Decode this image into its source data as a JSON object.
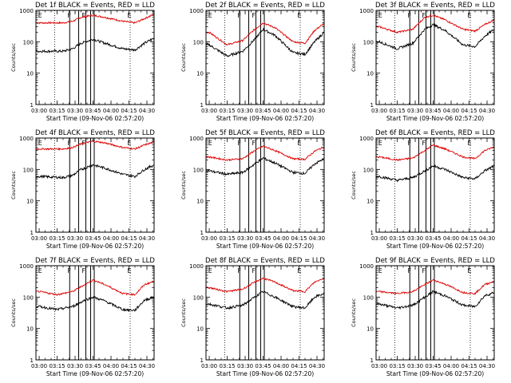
{
  "panels": [
    {
      "title": "Det 1f BLACK = Events, RED = LLD",
      "date_label": "Start Time (09-Nov-06 02:57:20)",
      "letters": [
        "E",
        "F",
        "F",
        "E"
      ]
    },
    {
      "title": "Det 2f BLACK = Events, RED = LLD",
      "date_label": "Start Time (09-Nov-06 02:57:20)",
      "letters": [
        "E",
        "F",
        "F",
        "E"
      ]
    },
    {
      "title": "Det 3f BLACK = Events, RED = LLD",
      "date_label": "Start Time (09-Nov-06 02:57:20)",
      "letters": [
        "E",
        "F",
        "F",
        "E"
      ]
    },
    {
      "title": "Det 4f BLACK = Events, RED = LLD",
      "date_label": "Start Time (09-Nov-06 02:57:20)",
      "letters": [
        "E",
        "F",
        "F",
        "E"
      ]
    },
    {
      "title": "Det 5f BLACK = Events, RED = LLD",
      "date_label": "Start Time (09-Nov-06 02:57:20)",
      "letters": [
        "E",
        "F",
        "F",
        "E"
      ]
    },
    {
      "title": "Det 6f BLACK = Events, RED = LLD",
      "date_label": "Start Time (09-Nov-06 02:57:20)",
      "letters": [
        "E",
        "F",
        "F",
        "E"
      ]
    },
    {
      "title": "Det 7f BLACK = Events, RED = LLD",
      "date_label": "Start Time (09-Nov-06 02:57:20)",
      "letters": [
        "E",
        "F",
        "F",
        "E"
      ]
    },
    {
      "title": "Det 8f BLACK = Events, RED = LLD",
      "date_label": "Start Time (09-Nov-06 02:57:20)",
      "letters": [
        "E",
        "F",
        "F",
        "E"
      ]
    },
    {
      "title": "Det 9f BLACK = Events, RED = LLD",
      "date_label": "Start Time (09-Nov-06 02:57:20)",
      "letters": [
        "E",
        "F",
        "F",
        "E"
      ]
    }
  ],
  "chart_data": {
    "type": "line",
    "scale_y": "log",
    "ylabel": "Counts/sec",
    "y_tick_labels": [
      "1",
      "10",
      "100",
      "1000"
    ],
    "ylim": [
      1,
      1000
    ],
    "x_tick_labels": [
      "03:00",
      "03:15",
      "03:30",
      "03:45",
      "04:00",
      "04:15",
      "04:30"
    ],
    "x_ticks_minutes_after_0300": [
      0,
      15,
      30,
      45,
      60,
      75,
      90
    ],
    "xlim_minutes_after_0300": [
      -2.7,
      96
    ],
    "colors": {
      "events": "#000000",
      "lld": "#dd0000",
      "axis": "#000000"
    },
    "dotted_markers_minutes_after_0300": [
      13,
      76
    ],
    "vertical_markers_minutes_after_0300": [
      25.5,
      33,
      39,
      43,
      46
    ],
    "series_names": [
      "Events",
      "LLD"
    ],
    "panels": [
      {
        "detector": "1f",
        "x_minutes": [
          0,
          20,
          28,
          35,
          45,
          55,
          70,
          80,
          88,
          96
        ],
        "events": [
          50,
          50,
          60,
          90,
          120,
          90,
          60,
          55,
          90,
          130
        ],
        "lld": [
          400,
          400,
          450,
          600,
          700,
          600,
          450,
          400,
          550,
          750
        ]
      },
      {
        "detector": "2f",
        "x_minutes": [
          0,
          15,
          28,
          38,
          45,
          55,
          70,
          80,
          88,
          96
        ],
        "events": [
          80,
          35,
          50,
          120,
          250,
          160,
          45,
          40,
          100,
          200
        ],
        "lld": [
          200,
          80,
          110,
          250,
          400,
          280,
          100,
          90,
          230,
          380
        ]
      },
      {
        "detector": "3f",
        "x_minutes": [
          0,
          15,
          28,
          38,
          45,
          55,
          70,
          80,
          88,
          96
        ],
        "events": [
          100,
          60,
          90,
          250,
          350,
          230,
          80,
          70,
          150,
          250
        ],
        "lld": [
          300,
          200,
          250,
          600,
          700,
          500,
          250,
          220,
          350,
          500
        ]
      },
      {
        "detector": "4f",
        "x_minutes": [
          0,
          20,
          28,
          35,
          45,
          55,
          70,
          80,
          88,
          96
        ],
        "events": [
          60,
          55,
          65,
          100,
          140,
          110,
          70,
          60,
          100,
          140
        ],
        "lld": [
          450,
          450,
          500,
          650,
          800,
          700,
          500,
          450,
          600,
          750
        ]
      },
      {
        "detector": "5f",
        "x_minutes": [
          0,
          15,
          28,
          38,
          45,
          55,
          70,
          80,
          88,
          96
        ],
        "events": [
          90,
          70,
          80,
          150,
          230,
          160,
          80,
          75,
          150,
          220
        ],
        "lld": [
          250,
          200,
          220,
          400,
          550,
          400,
          220,
          210,
          380,
          520
        ]
      },
      {
        "detector": "6f",
        "x_minutes": [
          0,
          15,
          28,
          38,
          45,
          55,
          70,
          80,
          88,
          96
        ],
        "events": [
          60,
          45,
          55,
          90,
          130,
          100,
          55,
          50,
          90,
          130
        ],
        "lld": [
          250,
          200,
          230,
          400,
          600,
          450,
          250,
          220,
          400,
          520
        ]
      },
      {
        "detector": "7f",
        "x_minutes": [
          0,
          15,
          28,
          38,
          45,
          55,
          70,
          80,
          88,
          96
        ],
        "events": [
          50,
          40,
          50,
          80,
          100,
          75,
          40,
          38,
          80,
          100
        ],
        "lld": [
          150,
          120,
          150,
          250,
          350,
          250,
          130,
          120,
          250,
          320
        ]
      },
      {
        "detector": "8f",
        "x_minutes": [
          0,
          15,
          28,
          38,
          45,
          55,
          70,
          80,
          88,
          96
        ],
        "events": [
          60,
          45,
          55,
          100,
          150,
          100,
          50,
          45,
          100,
          130
        ],
        "lld": [
          200,
          150,
          180,
          300,
          400,
          300,
          160,
          150,
          300,
          400
        ]
      },
      {
        "detector": "9f",
        "x_minutes": [
          0,
          15,
          28,
          38,
          45,
          55,
          70,
          80,
          88,
          96
        ],
        "events": [
          60,
          45,
          55,
          100,
          150,
          110,
          55,
          50,
          110,
          140
        ],
        "lld": [
          150,
          130,
          150,
          250,
          350,
          260,
          140,
          130,
          250,
          320
        ]
      }
    ]
  }
}
